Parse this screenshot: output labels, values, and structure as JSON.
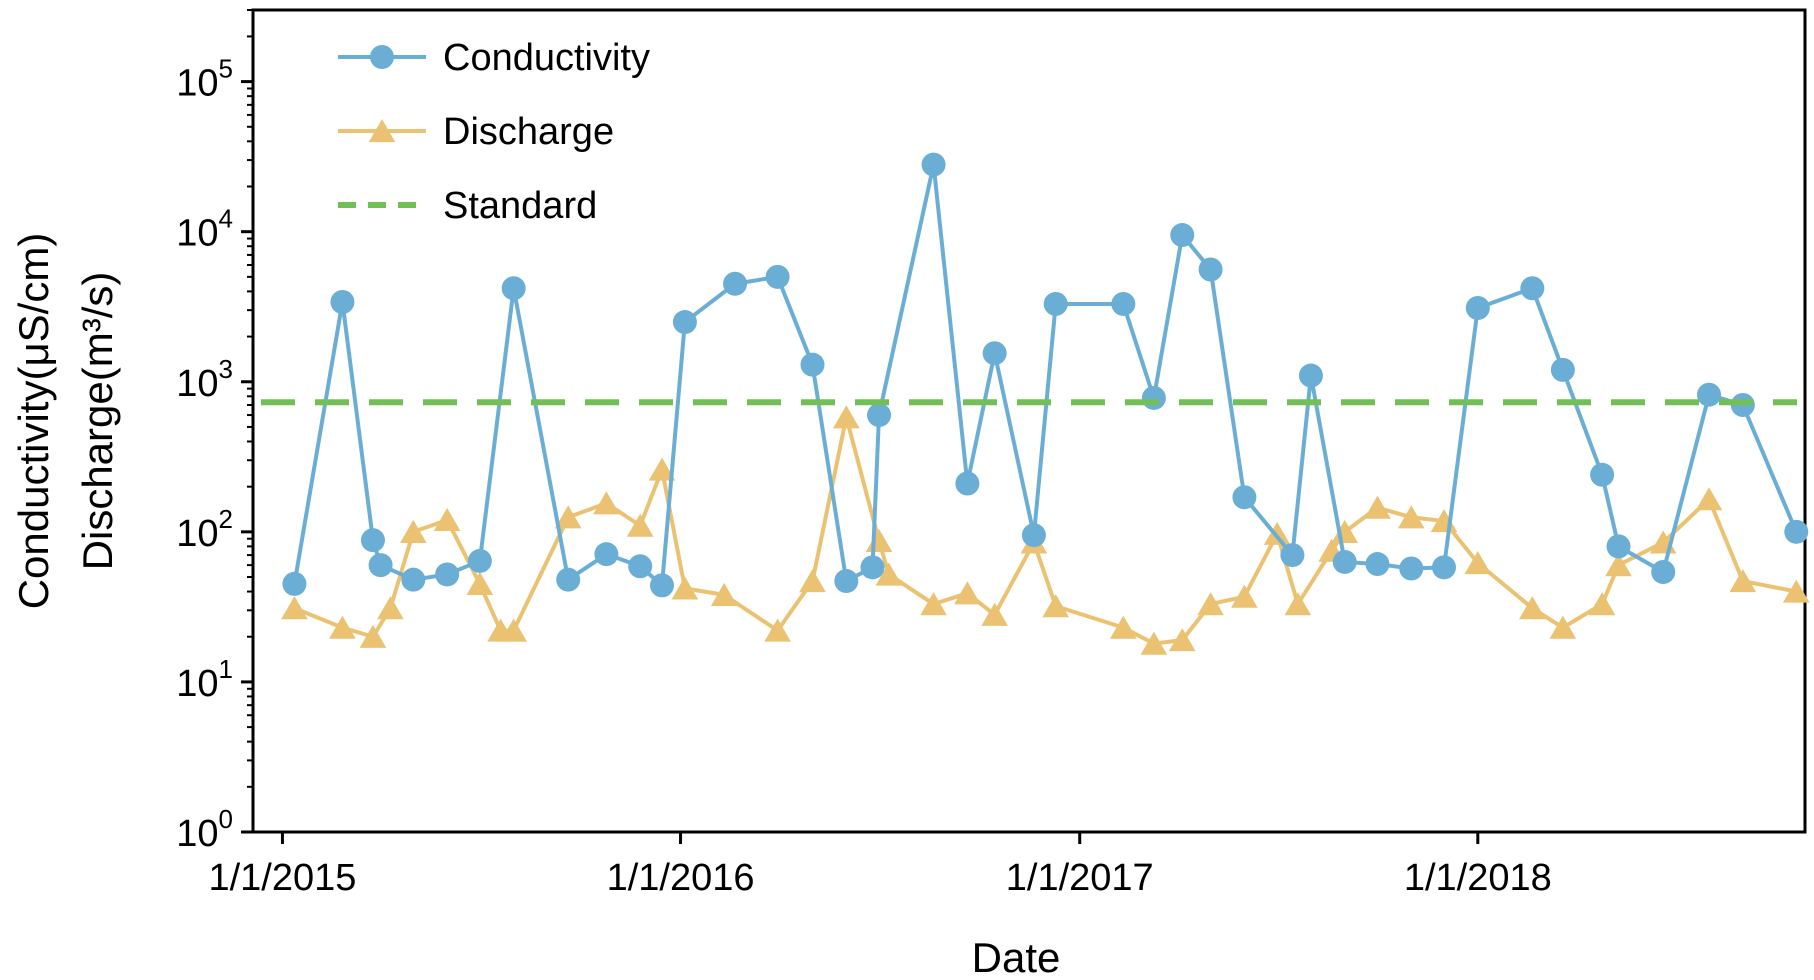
{
  "chart_data": {
    "type": "line",
    "title": "",
    "xlabel": "Date",
    "ylabel_lines": [
      "Conductivity(μS/cm)",
      "Discharge(m³/s)"
    ],
    "y_scale": "log",
    "ylim": [
      1,
      300000
    ],
    "y_ticks": [
      {
        "value": 1,
        "base": "10",
        "exp": "0"
      },
      {
        "value": 10,
        "base": "10",
        "exp": "1"
      },
      {
        "value": 100,
        "base": "10",
        "exp": "2"
      },
      {
        "value": 1000,
        "base": "10",
        "exp": "3"
      },
      {
        "value": 10000,
        "base": "10",
        "exp": "4"
      },
      {
        "value": 100000,
        "base": "10",
        "exp": "5"
      }
    ],
    "xlim": [
      "2014-12-05",
      "2018-10-28"
    ],
    "x_ticks": [
      {
        "date": "2015-01-01",
        "label": "1/1/2015"
      },
      {
        "date": "2016-01-01",
        "label": "1/1/2016"
      },
      {
        "date": "2017-01-01",
        "label": "1/1/2017"
      },
      {
        "date": "2018-01-01",
        "label": "1/1/2018"
      }
    ],
    "grid": false,
    "legend_position": "top-left",
    "series": [
      {
        "name": "Conductivity",
        "color": "#6aaed6",
        "marker": "circle",
        "x": [
          "2015-01-12",
          "2015-02-25",
          "2015-03-25",
          "2015-04-01",
          "2015-05-01",
          "2015-06-01",
          "2015-07-01",
          "2015-08-01",
          "2015-09-20",
          "2015-10-25",
          "2015-11-25",
          "2015-12-15",
          "2016-01-05",
          "2016-02-20",
          "2016-03-30",
          "2016-05-01",
          "2016-06-01",
          "2016-06-25",
          "2016-07-01",
          "2016-08-20",
          "2016-09-20",
          "2016-10-15",
          "2016-11-20",
          "2016-12-10",
          "2017-02-10",
          "2017-03-10",
          "2017-04-05",
          "2017-05-01",
          "2017-06-01",
          "2017-07-15",
          "2017-08-01",
          "2017-09-01",
          "2017-10-01",
          "2017-11-01",
          "2017-12-01",
          "2018-01-01",
          "2018-02-20",
          "2018-03-20",
          "2018-04-25",
          "2018-05-10",
          "2018-06-20",
          "2018-08-01",
          "2018-09-01",
          "2018-10-20"
        ],
        "y": [
          45,
          3400,
          88,
          60,
          48,
          52,
          64,
          4200,
          48,
          71,
          59,
          44,
          2500,
          4500,
          5000,
          1300,
          47,
          58,
          600,
          28000,
          210,
          1550,
          95,
          3300,
          3300,
          780,
          9500,
          5600,
          170,
          70,
          1100,
          63,
          61,
          57,
          58,
          3100,
          4200,
          1200,
          240,
          80,
          54,
          820,
          700,
          100
        ]
      },
      {
        "name": "Discharge",
        "color": "#ebc272",
        "marker": "triangle",
        "x": [
          "2015-01-12",
          "2015-02-25",
          "2015-03-25",
          "2015-04-10",
          "2015-05-01",
          "2015-06-01",
          "2015-07-01",
          "2015-07-20",
          "2015-08-01",
          "2015-09-20",
          "2015-10-25",
          "2015-11-25",
          "2015-12-15",
          "2016-01-05",
          "2016-02-10",
          "2016-03-30",
          "2016-05-01",
          "2016-06-01",
          "2016-07-01",
          "2016-07-10",
          "2016-08-20",
          "2016-09-20",
          "2016-10-15",
          "2016-11-20",
          "2016-12-10",
          "2017-02-10",
          "2017-03-10",
          "2017-04-05",
          "2017-05-01",
          "2017-06-01",
          "2017-07-01",
          "2017-07-20",
          "2017-08-20",
          "2017-09-01",
          "2017-10-01",
          "2017-11-01",
          "2017-12-01",
          "2018-01-01",
          "2018-02-20",
          "2018-03-20",
          "2018-04-25",
          "2018-05-10",
          "2018-06-20",
          "2018-08-01",
          "2018-09-01",
          "2018-10-20"
        ],
        "y": [
          31,
          23,
          20,
          31,
          100,
          120,
          45,
          22,
          22,
          125,
          155,
          110,
          260,
          42,
          38,
          22,
          47,
          580,
          87,
          52,
          33,
          39,
          28,
          85,
          32,
          23,
          18,
          19,
          33,
          37,
          97,
          33,
          75,
          100,
          145,
          125,
          118,
          62,
          31,
          23,
          33,
          60,
          85,
          165,
          47,
          40
        ]
      },
      {
        "name": "Standard",
        "color": "#72bf58",
        "style": "dashed",
        "y_constant": 730
      }
    ]
  }
}
